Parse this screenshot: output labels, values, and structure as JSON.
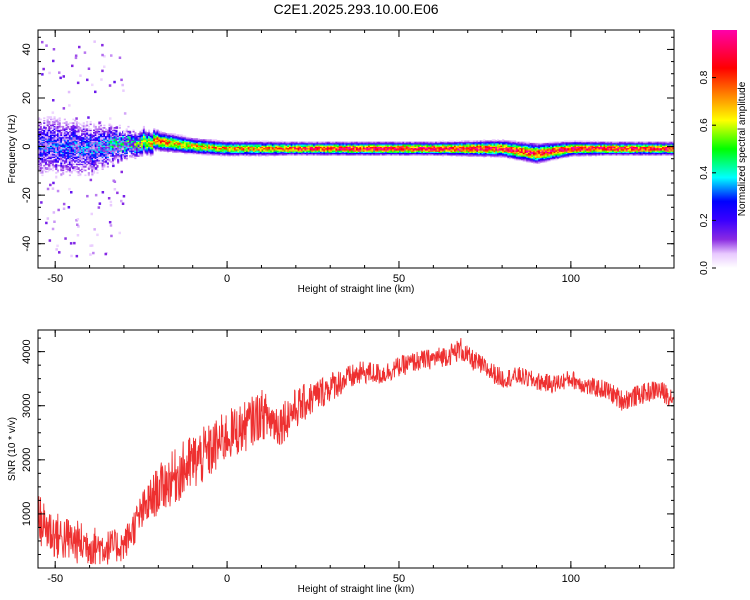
{
  "title": "C2E1.2025.293.10.00.E06",
  "colors": {
    "snr_line": "#ee3030",
    "scale": [
      "#ffffff",
      "#e8c8ff",
      "#8a2be2",
      "#3a00ff",
      "#0000ff",
      "#00ffff",
      "#00ff00",
      "#ffff00",
      "#ff8c00",
      "#ff0000",
      "#ff00aa"
    ]
  },
  "chart_data": [
    {
      "type": "heatmap",
      "name": "spectrogram",
      "xlabel": "Height of straight line (km)",
      "ylabel": "Frequency (Hz)",
      "xlim": [
        -55,
        130
      ],
      "ylim": [
        -50,
        48
      ],
      "xticks": [
        -50,
        0,
        50,
        100
      ],
      "xtick_labels": [
        "-50",
        "0",
        "50",
        "100"
      ],
      "yticks": [
        -40,
        -20,
        0,
        20,
        40
      ],
      "ytick_labels": [
        "-40",
        "-20",
        "0",
        "20",
        "40"
      ],
      "colorbar": {
        "label": "Normalized spectral amplitude",
        "range": [
          0,
          1
        ],
        "ticks": [
          0.0,
          0.2,
          0.4,
          0.6,
          0.8
        ],
        "tick_labels": [
          "0.0",
          "0.2",
          "0.4",
          "0.6",
          "0.8"
        ]
      },
      "ridge": {
        "x": [
          -55,
          -40,
          -30,
          -20,
          -10,
          0,
          10,
          20,
          40,
          60,
          80,
          90,
          100,
          110,
          130
        ],
        "center_hz": [
          0,
          -1,
          1,
          2,
          0,
          -1,
          -1,
          -1,
          -1,
          -1,
          -1,
          -3,
          -1,
          -1,
          -1
        ],
        "peak_amplitude": [
          0.3,
          0.32,
          0.45,
          0.75,
          0.65,
          0.72,
          0.7,
          0.82,
          0.92,
          0.9,
          0.88,
          0.86,
          0.92,
          0.9,
          0.85
        ],
        "halfwidth_hz": [
          10,
          9,
          5,
          3,
          2.5,
          2.2,
          2.2,
          2,
          2,
          2,
          2.5,
          3,
          2.2,
          2,
          2
        ]
      }
    },
    {
      "type": "line",
      "name": "snr",
      "xlabel": "Height of straight line (km)",
      "ylabel": "SNR (10 * v/v)",
      "xlim": [
        -55,
        130
      ],
      "ylim": [
        0,
        4400
      ],
      "xticks": [
        -50,
        0,
        50,
        100
      ],
      "xtick_labels": [
        "-50",
        "0",
        "50",
        "100"
      ],
      "yticks": [
        1000,
        2000,
        3000,
        4000
      ],
      "ytick_labels": [
        "1000",
        "2000",
        "3000",
        "4000"
      ],
      "trend": {
        "x": [
          -55,
          -50,
          -45,
          -40,
          -35,
          -30,
          -25,
          -20,
          -15,
          -10,
          -5,
          0,
          5,
          10,
          15,
          20,
          25,
          30,
          35,
          40,
          45,
          50,
          55,
          60,
          65,
          68,
          70,
          75,
          80,
          85,
          90,
          95,
          100,
          105,
          110,
          115,
          120,
          125,
          130
        ],
        "y": [
          900,
          600,
          500,
          420,
          380,
          420,
          1000,
          1450,
          1700,
          1950,
          2150,
          2450,
          2600,
          2850,
          2650,
          2950,
          3150,
          3350,
          3500,
          3620,
          3580,
          3720,
          3820,
          3870,
          3950,
          4050,
          3900,
          3700,
          3500,
          3550,
          3450,
          3400,
          3500,
          3350,
          3300,
          3100,
          3200,
          3300,
          3150
        ],
        "noise_amplitude": [
          500,
          450,
          420,
          380,
          330,
          300,
          380,
          450,
          520,
          560,
          520,
          480,
          470,
          460,
          420,
          380,
          320,
          280,
          240,
          220,
          200,
          190,
          190,
          190,
          200,
          220,
          200,
          190,
          180,
          170,
          170,
          170,
          170,
          170,
          180,
          200,
          190,
          190,
          200
        ]
      }
    }
  ]
}
